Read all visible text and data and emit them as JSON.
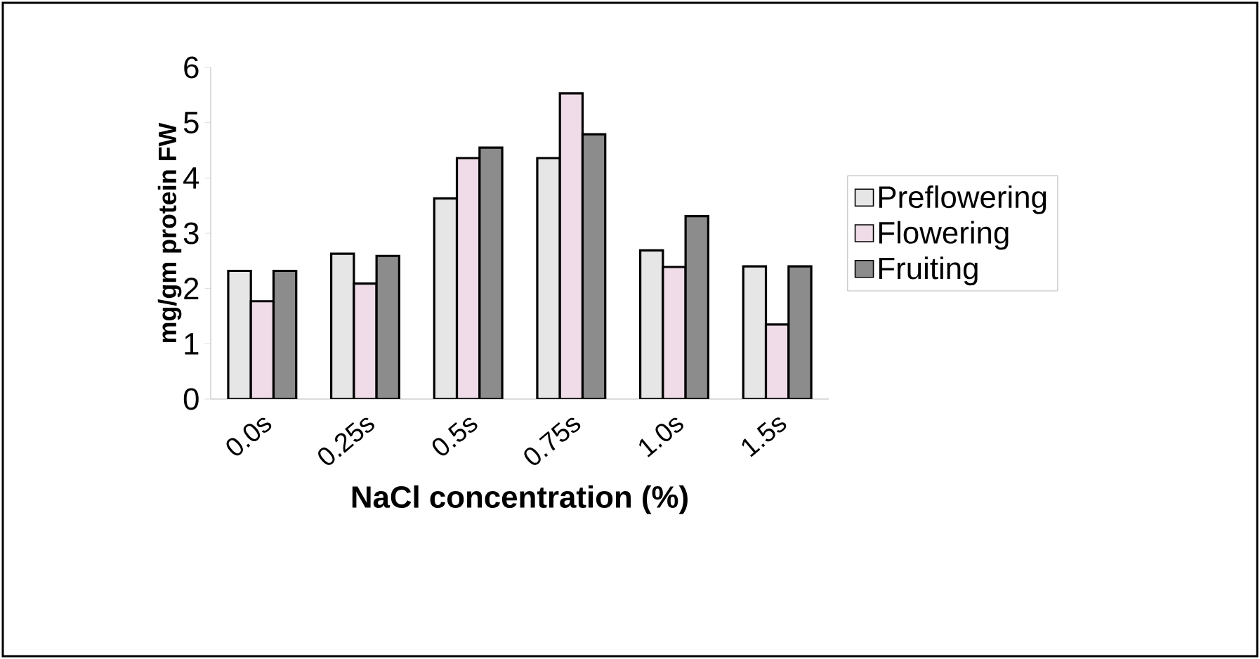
{
  "chart_data": {
    "type": "bar",
    "xlabel": "NaCl concentration (%)",
    "ylabel": "mg/gm protein FW",
    "categories": [
      "0.0s",
      "0.25s",
      "0.5s",
      "0.75s",
      "1.0s",
      "1.5s"
    ],
    "series": [
      {
        "name": "Preflowering",
        "color": "#e6e6e6",
        "values": [
          2.32,
          2.63,
          3.63,
          4.36,
          2.69,
          2.4
        ]
      },
      {
        "name": "Flowering",
        "color": "#f0dce8",
        "values": [
          1.77,
          2.09,
          4.36,
          5.53,
          2.39,
          1.35
        ]
      },
      {
        "name": "Fruiting",
        "color": "#8c8c8c",
        "values": [
          2.32,
          2.59,
          4.55,
          4.79,
          3.31,
          2.4
        ]
      }
    ],
    "ylim": [
      0,
      6
    ],
    "yticks": [
      0,
      1,
      2,
      3,
      4,
      5,
      6
    ],
    "grid": false,
    "legend": "right"
  }
}
